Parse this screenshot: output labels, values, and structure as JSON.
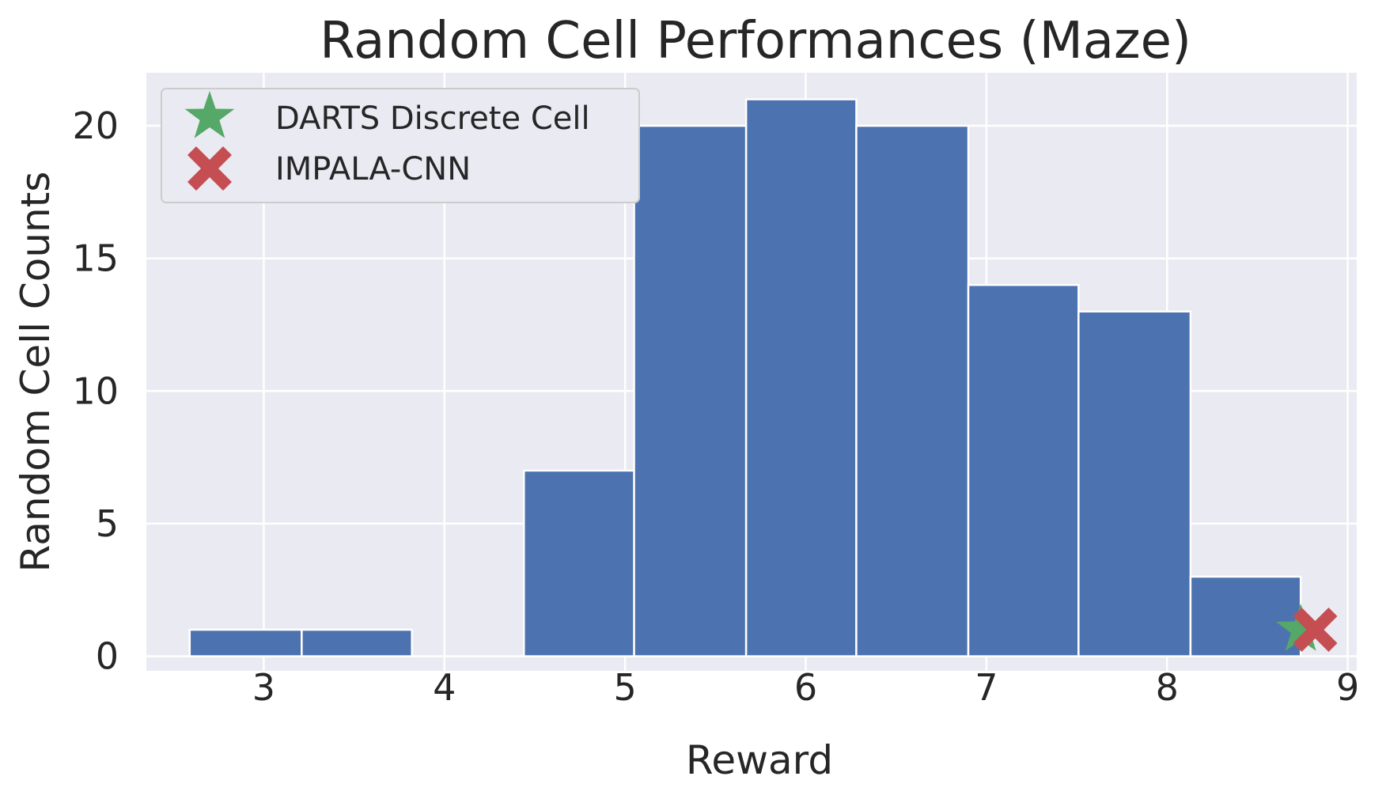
{
  "chart_data": {
    "type": "bar",
    "title": "Random Cell Performances (Maze)",
    "xlabel": "Reward",
    "ylabel": "Random Cell Counts",
    "xlim": [
      2.35,
      9.05
    ],
    "ylim": [
      -0.55,
      22.0
    ],
    "xticks": [
      3,
      4,
      5,
      6,
      7,
      8,
      9
    ],
    "yticks": [
      0,
      5,
      10,
      15,
      20
    ],
    "grid": true,
    "legend_position": "top-left",
    "bins": [
      {
        "x0": 2.59,
        "x1": 3.21,
        "count": 1
      },
      {
        "x0": 3.21,
        "x1": 3.82,
        "count": 1
      },
      {
        "x0": 3.82,
        "x1": 4.44,
        "count": 0
      },
      {
        "x0": 4.44,
        "x1": 5.05,
        "count": 7
      },
      {
        "x0": 5.05,
        "x1": 5.67,
        "count": 20
      },
      {
        "x0": 5.67,
        "x1": 6.28,
        "count": 21
      },
      {
        "x0": 6.28,
        "x1": 6.9,
        "count": 20
      },
      {
        "x0": 6.9,
        "x1": 7.51,
        "count": 14
      },
      {
        "x0": 7.51,
        "x1": 8.13,
        "count": 13
      },
      {
        "x0": 8.13,
        "x1": 8.74,
        "count": 3
      }
    ],
    "markers": [
      {
        "name": "DARTS Discrete Cell",
        "symbol": "star",
        "x": 8.74,
        "y": 1,
        "color": "#55a868"
      },
      {
        "name": "IMPALA-CNN",
        "symbol": "x",
        "x": 8.82,
        "y": 1,
        "color": "#c44e52"
      }
    ],
    "colors": {
      "background": "#eaeaf2",
      "grid": "#ffffff",
      "bar": "#4c72b0",
      "bar_edge": "#ffffff"
    }
  }
}
